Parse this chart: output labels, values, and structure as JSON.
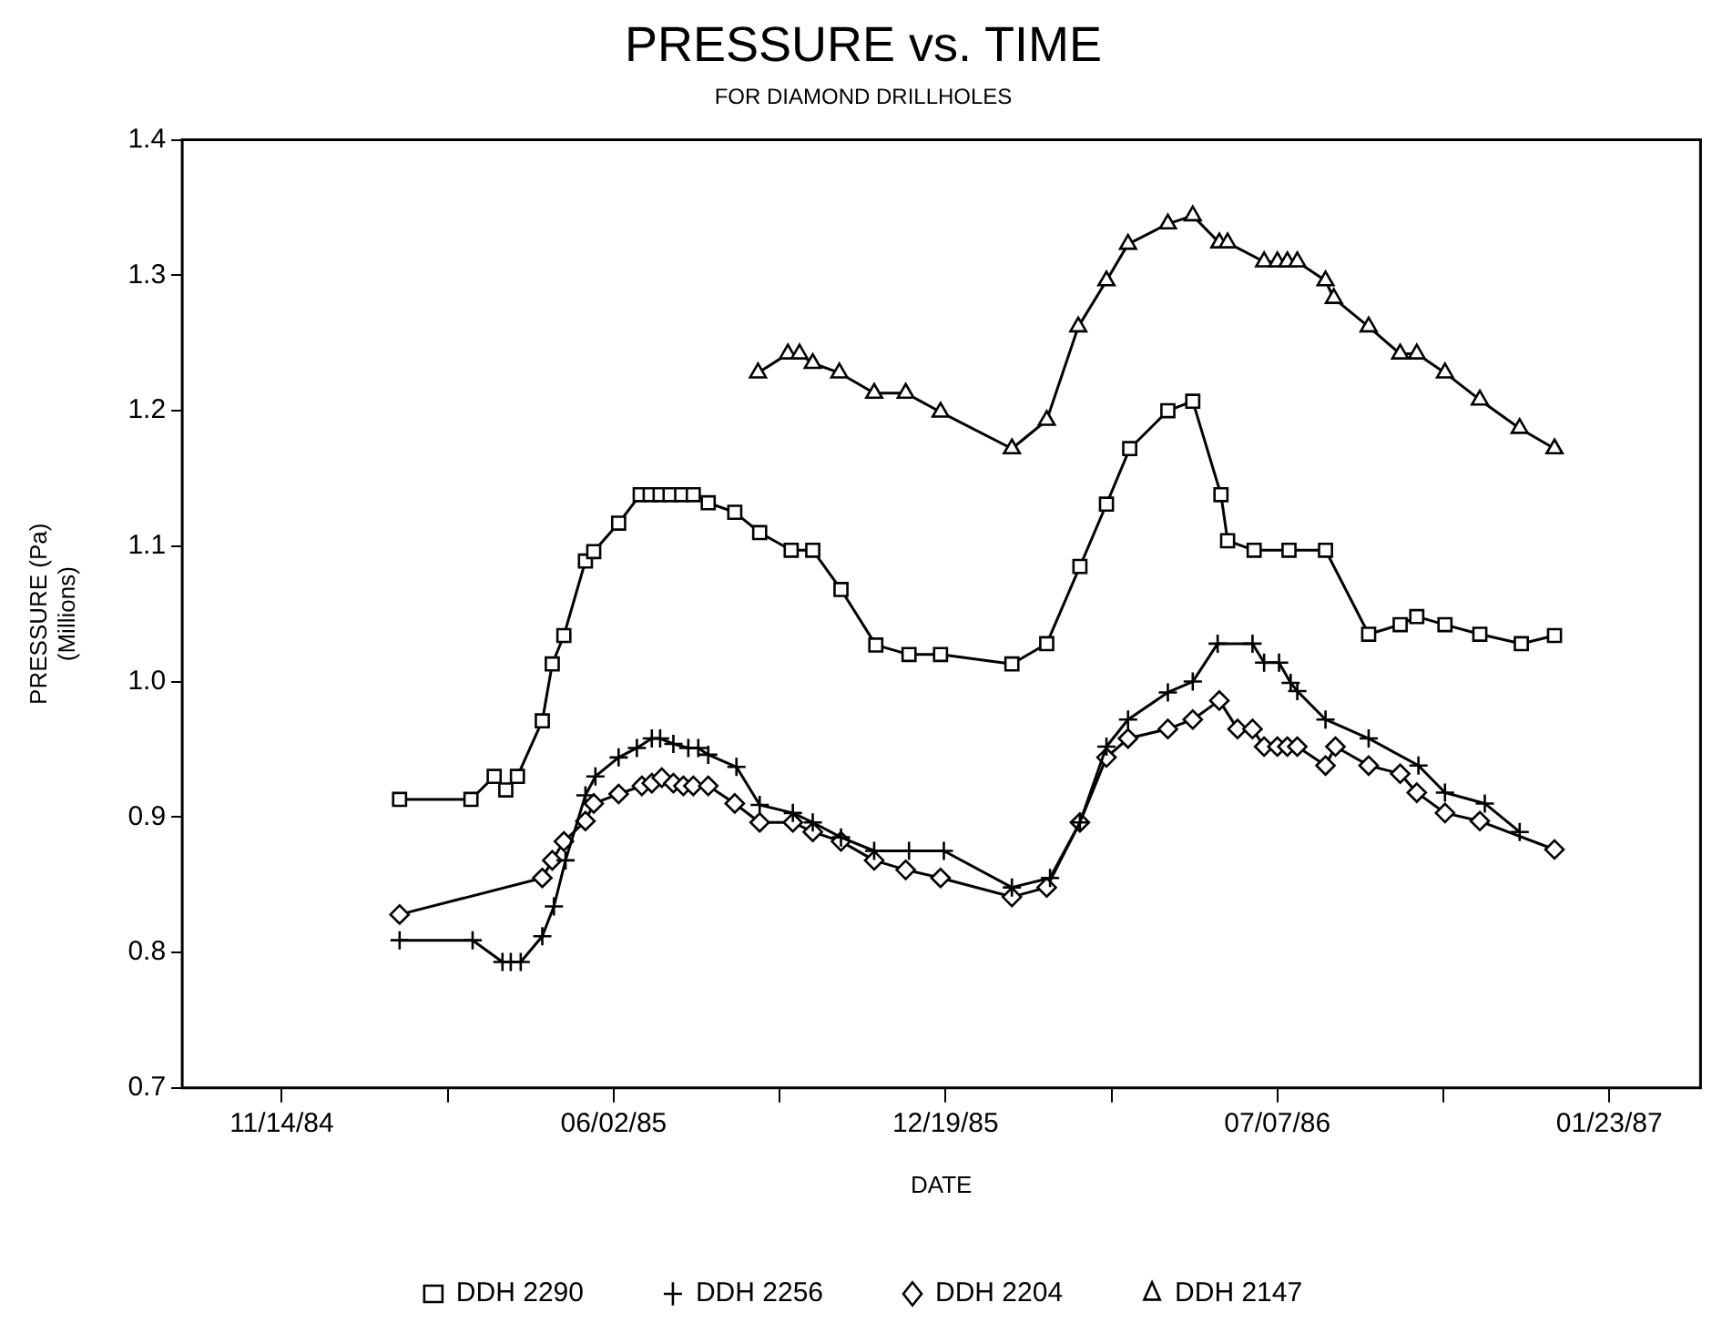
{
  "chart_data": {
    "type": "line",
    "title": "PRESSURE vs. TIME",
    "subtitle": "FOR DIAMOND DRILLHOLES",
    "xlabel": "DATE",
    "ylabel": "PRESSURE (Pa)\n(Millions)",
    "xlim": [
      "1984-09-15",
      "1987-03-19"
    ],
    "xticks": [
      {
        "value": "1984-11-14",
        "label": "11/14/84"
      },
      {
        "value": "1985-02-22",
        "label": null
      },
      {
        "value": "1985-06-02",
        "label": "06/02/85"
      },
      {
        "value": "1985-09-10",
        "label": null
      },
      {
        "value": "1985-12-19",
        "label": "12/19/85"
      },
      {
        "value": "1986-03-29",
        "label": null
      },
      {
        "value": "1986-07-07",
        "label": "07/07/86"
      },
      {
        "value": "1986-10-15",
        "label": null
      },
      {
        "value": "1987-01-23",
        "label": "01/23/87"
      }
    ],
    "ylim": [
      0.7,
      1.4
    ],
    "yticks": [
      0.7,
      0.8,
      0.9,
      {
        "value": 1,
        "label": "1.0"
      },
      1.1,
      1.2,
      1.3,
      1.4
    ],
    "grid": false,
    "legend": "bottom",
    "line_style": "solid",
    "series": [
      {
        "name": "DDH 2290",
        "color": "#000000",
        "marker": "square",
        "x": [
          "1985-01-24",
          "1985-03-08",
          "1985-03-22",
          "1985-03-29",
          "1985-04-05",
          "1985-04-20",
          "1985-04-26",
          "1985-05-03",
          "1985-05-16",
          "1985-05-21",
          "1985-06-05",
          "1985-06-18",
          "1985-06-24",
          "1985-06-30",
          "1985-07-06",
          "1985-07-13",
          "1985-07-20",
          "1985-07-29",
          "1985-08-14",
          "1985-08-29",
          "1985-09-17",
          "1985-09-30",
          "1985-10-17",
          "1985-11-07",
          "1985-11-27",
          "1985-12-16",
          "1986-01-28",
          "1986-02-18",
          "1986-03-10",
          "1986-03-26",
          "1986-04-09",
          "1986-05-02",
          "1986-05-17",
          "1986-06-03",
          "1986-06-07",
          "1986-06-23",
          "1986-07-14",
          "1986-08-05",
          "1986-08-31",
          "1986-09-19",
          "1986-09-29",
          "1986-10-16",
          "1986-11-06",
          "1986-12-01",
          "1986-12-21"
        ],
        "values": [
          0.913,
          0.913,
          0.93,
          0.92,
          0.93,
          0.971,
          1.013,
          1.034,
          1.089,
          1.096,
          1.117,
          1.138,
          1.138,
          1.138,
          1.138,
          1.138,
          1.138,
          1.132,
          1.125,
          1.11,
          1.097,
          1.097,
          1.068,
          1.027,
          1.02,
          1.02,
          1.013,
          1.028,
          1.085,
          1.131,
          1.172,
          1.2,
          1.207,
          1.138,
          1.104,
          1.097,
          1.097,
          1.097,
          1.035,
          1.042,
          1.048,
          1.042,
          1.035,
          1.028,
          1.034
        ]
      },
      {
        "name": "DDH 2256",
        "color": "#000000",
        "marker": "cross",
        "x": [
          "1985-01-24",
          "1985-03-09",
          "1985-03-27",
          "1985-04-01",
          "1985-04-07",
          "1985-04-20",
          "1985-04-27",
          "1985-05-04",
          "1985-05-16",
          "1985-05-22",
          "1985-06-05",
          "1985-06-16",
          "1985-06-25",
          "1985-06-30",
          "1985-07-08",
          "1985-07-17",
          "1985-07-23",
          "1985-07-29",
          "1985-08-15",
          "1985-08-29",
          "1985-09-18",
          "1985-09-30",
          "1985-10-17",
          "1985-11-06",
          "1985-11-27",
          "1985-12-18",
          "1986-01-28",
          "1986-02-20",
          "1986-03-10",
          "1986-03-26",
          "1986-04-08",
          "1986-05-02",
          "1986-05-17",
          "1986-06-01",
          "1986-06-22",
          "1986-06-29",
          "1986-07-08",
          "1986-07-15",
          "1986-07-19",
          "1986-08-05",
          "1986-08-31",
          "1986-09-30",
          "1986-10-16",
          "1986-11-09",
          "1986-11-30"
        ],
        "values": [
          0.809,
          0.809,
          0.793,
          0.793,
          0.793,
          0.812,
          0.834,
          0.868,
          0.916,
          0.93,
          0.944,
          0.951,
          0.958,
          0.958,
          0.954,
          0.951,
          0.951,
          0.946,
          0.937,
          0.909,
          0.903,
          0.896,
          0.885,
          0.875,
          0.875,
          0.875,
          0.848,
          0.855,
          0.896,
          0.952,
          0.972,
          0.992,
          1.0,
          1.028,
          1.028,
          1.014,
          1.014,
          0.999,
          0.993,
          0.972,
          0.958,
          0.938,
          0.918,
          0.91,
          0.889
        ]
      },
      {
        "name": "DDH 2204",
        "color": "#000000",
        "marker": "diamond",
        "x": [
          "1985-01-24",
          "1985-04-20",
          "1985-04-26",
          "1985-05-03",
          "1985-05-16",
          "1985-05-21",
          "1985-06-05",
          "1985-06-19",
          "1985-06-25",
          "1985-07-01",
          "1985-07-08",
          "1985-07-14",
          "1985-07-20",
          "1985-07-29",
          "1985-08-14",
          "1985-08-29",
          "1985-09-18",
          "1985-09-30",
          "1985-10-17",
          "1985-11-06",
          "1985-11-25",
          "1985-12-16",
          "1986-01-28",
          "1986-02-18",
          "1986-03-10",
          "1986-03-26",
          "1986-04-08",
          "1986-05-02",
          "1986-05-17",
          "1986-06-02",
          "1986-06-13",
          "1986-06-22",
          "1986-06-29",
          "1986-07-07",
          "1986-07-13",
          "1986-07-19",
          "1986-08-05",
          "1986-08-11",
          "1986-08-31",
          "1986-09-19",
          "1986-09-29",
          "1986-10-16",
          "1986-11-06",
          "1986-12-21"
        ],
        "values": [
          0.828,
          0.855,
          0.868,
          0.882,
          0.897,
          0.91,
          0.917,
          0.923,
          0.925,
          0.929,
          0.925,
          0.923,
          0.923,
          0.923,
          0.91,
          0.896,
          0.896,
          0.889,
          0.882,
          0.868,
          0.861,
          0.855,
          0.841,
          0.848,
          0.896,
          0.944,
          0.958,
          0.965,
          0.972,
          0.986,
          0.965,
          0.965,
          0.952,
          0.952,
          0.952,
          0.952,
          0.938,
          0.952,
          0.938,
          0.932,
          0.918,
          0.903,
          0.897,
          0.876
        ]
      },
      {
        "name": "DDH 2147",
        "color": "#000000",
        "marker": "triangle",
        "x": [
          "1985-08-28",
          "1985-09-15",
          "1985-09-22",
          "1985-09-30",
          "1985-10-16",
          "1985-11-06",
          "1985-11-25",
          "1985-12-16",
          "1986-01-28",
          "1986-02-18",
          "1986-03-09",
          "1986-03-26",
          "1986-04-08",
          "1986-05-02",
          "1986-05-17",
          "1986-06-02",
          "1986-06-07",
          "1986-06-29",
          "1986-07-07",
          "1986-07-13",
          "1986-07-19",
          "1986-08-05",
          "1986-08-10",
          "1986-08-31",
          "1986-09-19",
          "1986-09-29",
          "1986-10-16",
          "1986-11-06",
          "1986-11-30",
          "1986-12-21"
        ],
        "values": [
          1.228,
          1.242,
          1.242,
          1.235,
          1.228,
          1.213,
          1.213,
          1.199,
          1.172,
          1.193,
          1.262,
          1.296,
          1.323,
          1.338,
          1.344,
          1.324,
          1.324,
          1.31,
          1.31,
          1.31,
          1.31,
          1.296,
          1.283,
          1.262,
          1.242,
          1.242,
          1.228,
          1.208,
          1.187,
          1.172
        ]
      }
    ]
  }
}
